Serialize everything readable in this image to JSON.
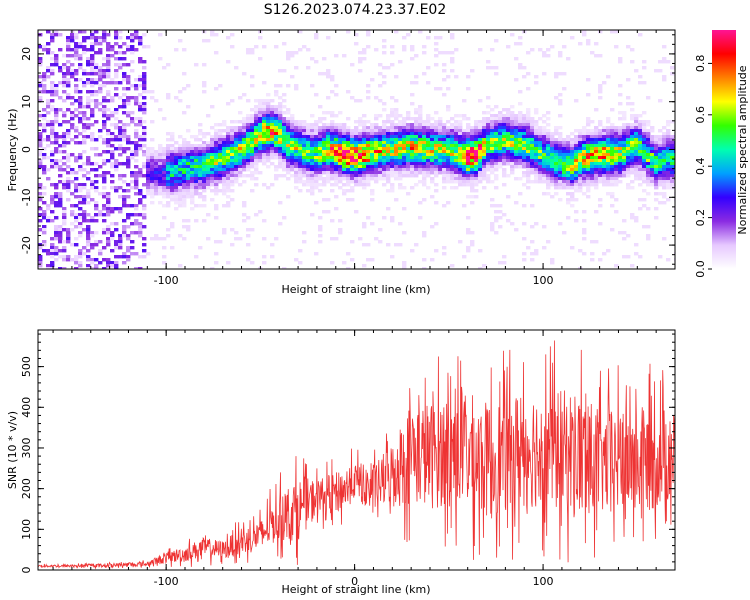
{
  "title": "S126.2023.074.23.37.E02",
  "chart_data": [
    {
      "type": "heatmap",
      "xlabel": "Height of straight line (km)",
      "ylabel": "Frequency (Hz)",
      "xlim": [
        -168,
        170
      ],
      "ylim": [
        -25,
        25
      ],
      "xticks": [
        -100,
        0,
        100
      ],
      "xtick_labels": [
        "-100",
        "",
        "100"
      ],
      "yticks": [
        -20,
        -10,
        0,
        10,
        20
      ],
      "colorbar": {
        "label": "Normalized spectral amplitude",
        "range": [
          0,
          0.93
        ],
        "ticks": [
          0.0,
          0.2,
          0.4,
          0.6,
          0.8
        ],
        "colormap": [
          "#ffffff",
          "#e6c8ff",
          "#8a2be2",
          "#3300ff",
          "#00a0ff",
          "#00ffb0",
          "#33ff00",
          "#ffff00",
          "#ff8000",
          "#ff0000",
          "#ff1493"
        ]
      },
      "ridge": {
        "x": [
          -110,
          -100,
          -90,
          -80,
          -70,
          -60,
          -50,
          -45,
          -40,
          -35,
          -30,
          -20,
          -15,
          -10,
          -5,
          0,
          10,
          20,
          30,
          40,
          50,
          55,
          60,
          65,
          70,
          80,
          90,
          100,
          110,
          115,
          120,
          130,
          140,
          150,
          160,
          165
        ],
        "y": [
          -5,
          -5,
          -4,
          -3.5,
          -2,
          0,
          3,
          4,
          3,
          1,
          0,
          -1,
          0,
          -0.5,
          -1,
          -1.5,
          -0.5,
          0,
          0.5,
          0,
          0,
          -1,
          -1.5,
          -1,
          1,
          2,
          1,
          -1,
          -3,
          -3.5,
          -2,
          -1,
          -1,
          1,
          -3,
          -2
        ],
        "strength": [
          0.35,
          0.4,
          0.4,
          0.45,
          0.5,
          0.5,
          0.6,
          0.7,
          0.6,
          0.55,
          0.5,
          0.5,
          0.6,
          0.75,
          0.9,
          0.85,
          0.6,
          0.55,
          0.6,
          0.55,
          0.5,
          0.6,
          0.9,
          0.8,
          0.55,
          0.5,
          0.5,
          0.45,
          0.5,
          0.55,
          0.6,
          0.7,
          0.55,
          0.5,
          0.45,
          0.4
        ]
      }
    },
    {
      "type": "line",
      "xlabel": "Height of straight line (km)",
      "ylabel": "SNR (10 * v/v)",
      "xlim": [
        -168,
        170
      ],
      "ylim": [
        0,
        590
      ],
      "xticks": [
        -100,
        0,
        100
      ],
      "yticks": [
        0,
        100,
        200,
        300,
        400,
        500
      ],
      "series": [
        {
          "color": "#ee3333",
          "envelope": {
            "x": [
              -168,
              -150,
              -130,
              -110,
              -100,
              -90,
              -80,
              -70,
              -60,
              -50,
              -45,
              -40,
              -30,
              -20,
              -10,
              -5,
              0,
              10,
              20,
              25,
              30,
              40,
              50,
              60,
              70,
              80,
              90,
              100,
              110,
              120,
              130,
              140,
              150,
              160,
              170
            ],
            "mean": [
              10,
              10,
              12,
              15,
              30,
              40,
              55,
              50,
              70,
              85,
              110,
              130,
              150,
              180,
              190,
              200,
              220,
              200,
              240,
              260,
              290,
              280,
              300,
              290,
              270,
              280,
              300,
              300,
              290,
              280,
              260,
              270,
              260,
              280,
              280
            ],
            "amp": [
              6,
              6,
              8,
              10,
              25,
              35,
              45,
              40,
              60,
              70,
              90,
              110,
              140,
              80,
              90,
              100,
              80,
              100,
              140,
              200,
              230,
              240,
              260,
              270,
              260,
              260,
              270,
              270,
              280,
              300,
              230,
              240,
              230,
              240,
              200
            ]
          }
        }
      ]
    }
  ]
}
